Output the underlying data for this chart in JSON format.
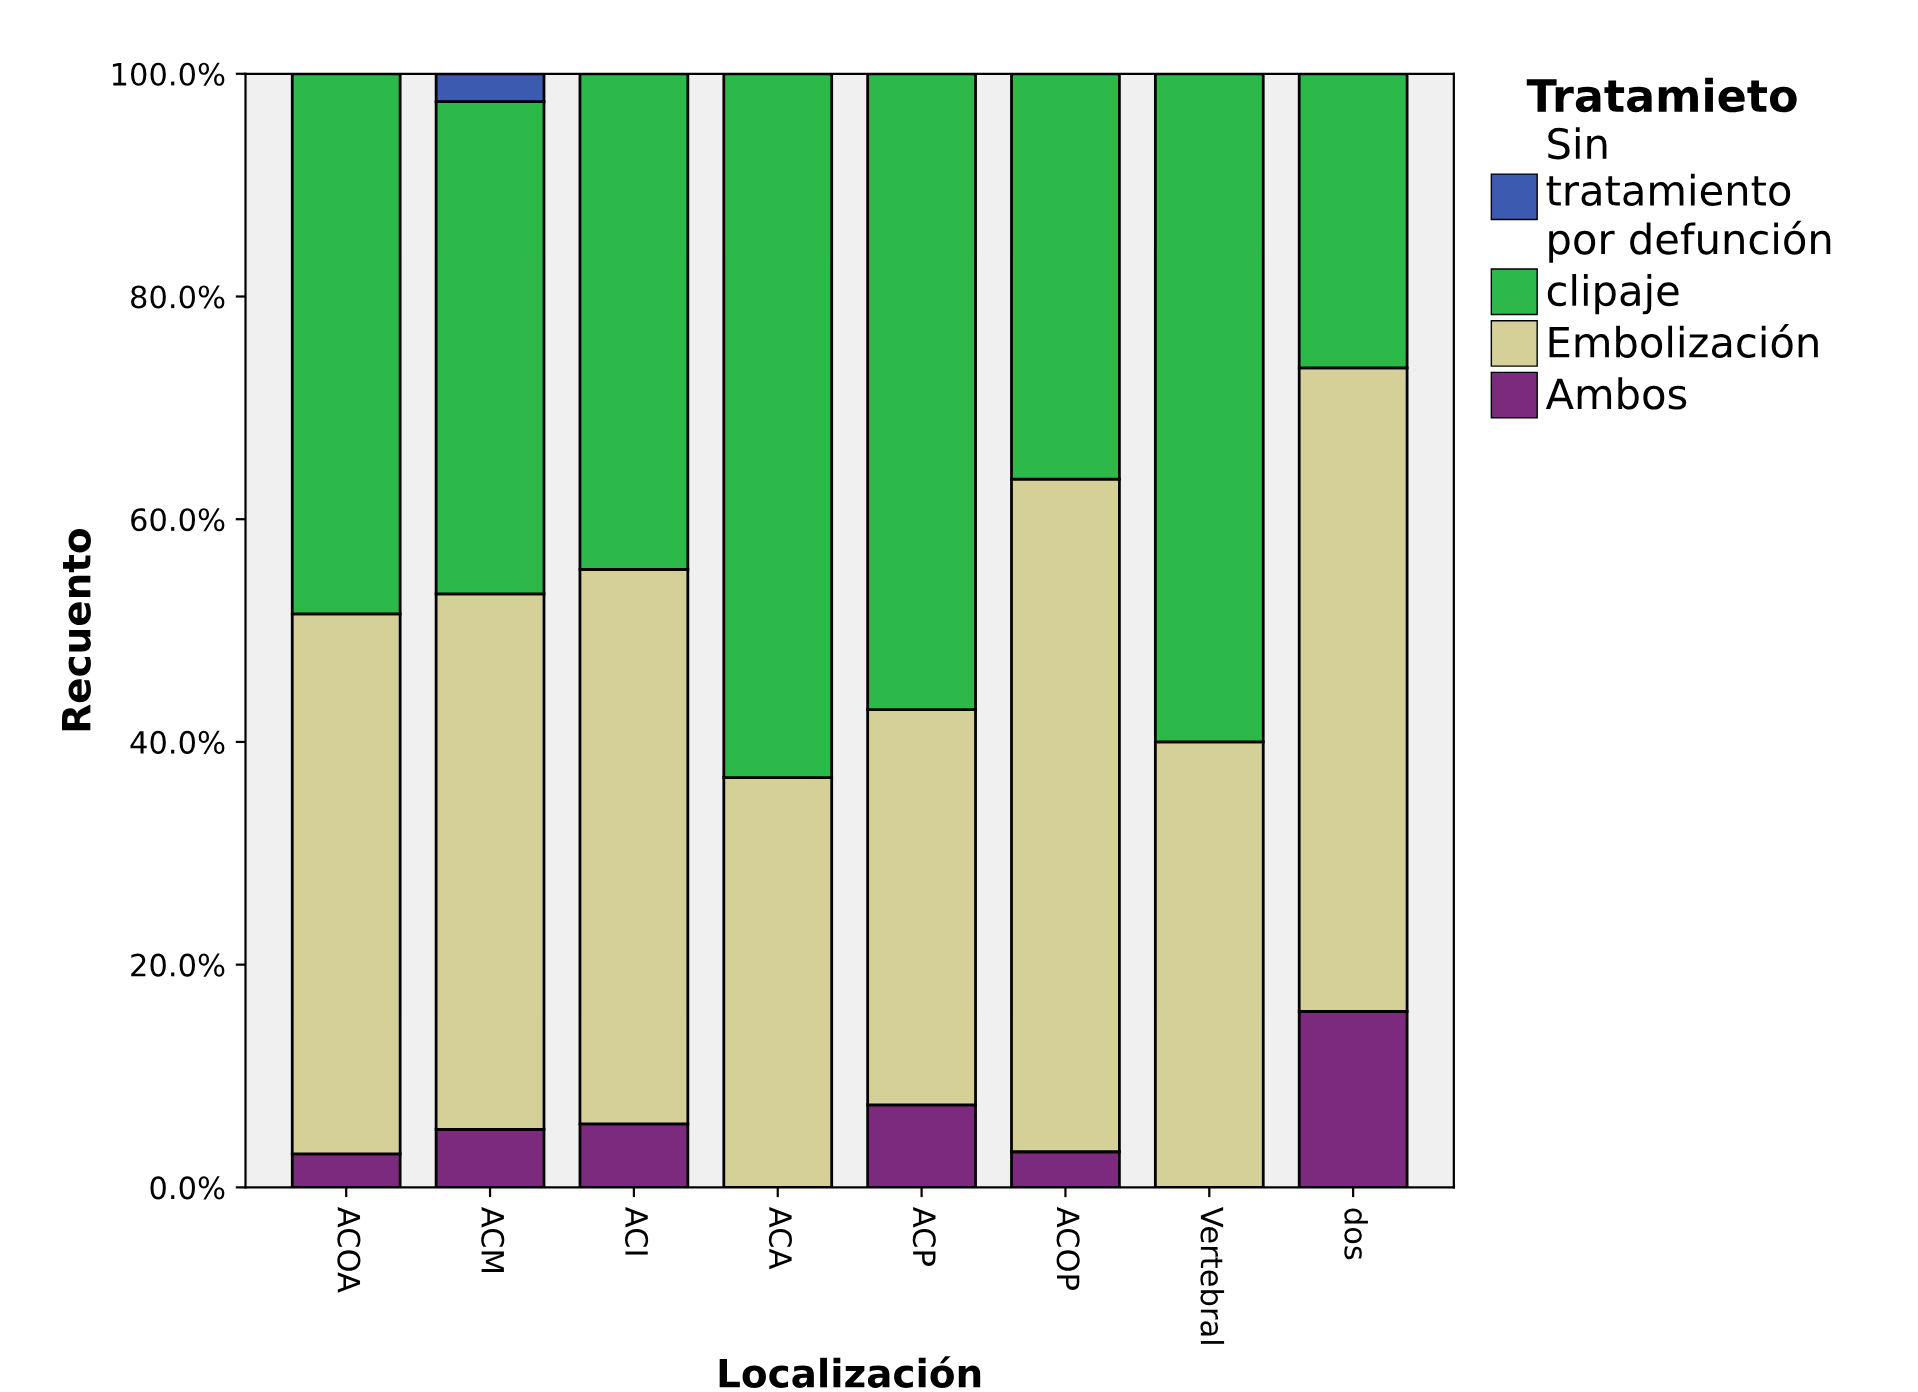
{
  "chart_data": {
    "type": "bar",
    "stacked": true,
    "xlabel": "Localización",
    "ylabel": "Recuento",
    "legend_title": "Tratamieto",
    "legend": "top right",
    "grid": false,
    "categories": [
      "ACOA",
      "ACM",
      "ACI",
      "ACA",
      "ACP",
      "ACOP",
      "Vertebral",
      "dos"
    ],
    "ylim": [
      0,
      100
    ],
    "yticks": [
      {
        "value": 0,
        "label": "0.0%"
      },
      {
        "value": 20,
        "label": "20.0%"
      },
      {
        "value": 40,
        "label": "40.0%"
      },
      {
        "value": 60,
        "label": "60.0%"
      },
      {
        "value": 80,
        "label": "80.0%"
      },
      {
        "value": 100,
        "label": "100.0%"
      }
    ],
    "series": [
      {
        "name": "Ambos",
        "color": "#7b2a7e",
        "values": [
          3.0,
          5.2,
          5.7,
          0,
          7.4,
          3.2,
          0,
          15.8
        ]
      },
      {
        "name": "Embolización",
        "color": "#d5cf98",
        "values": [
          48.5,
          48.1,
          49.8,
          36.8,
          35.5,
          60.4,
          40.0,
          57.8
        ]
      },
      {
        "name": "clipaje",
        "color": "#2db84a",
        "values": [
          48.5,
          44.2,
          44.5,
          63.2,
          57.1,
          36.4,
          60.0,
          26.4
        ]
      },
      {
        "name": "Sin\ntratamiento\npor defunción",
        "color": "#3c5bb0",
        "values": [
          0,
          2.5,
          0,
          0,
          0,
          0,
          0,
          0
        ]
      }
    ]
  }
}
